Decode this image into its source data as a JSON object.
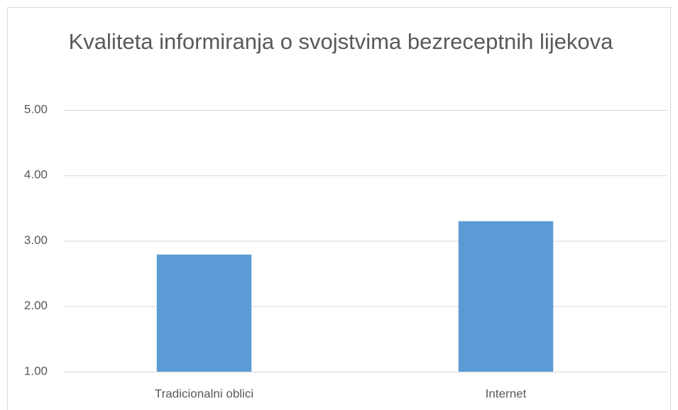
{
  "chart_data": {
    "type": "bar",
    "title": "Kvaliteta informiranja o svojstvima bezreceptnih lijekova",
    "categories": [
      "Tradicionalni oblici",
      "Internet"
    ],
    "values": [
      2.79,
      3.3
    ],
    "color": "#5b9bd5",
    "ylim": [
      1,
      5
    ],
    "yticks": [
      {
        "value": 1,
        "label": "1.00"
      },
      {
        "value": 2,
        "label": "2.00"
      },
      {
        "value": 3,
        "label": "3.00"
      },
      {
        "value": 4,
        "label": "4.00"
      },
      {
        "value": 5,
        "label": "5.00"
      }
    ],
    "grid": true
  }
}
